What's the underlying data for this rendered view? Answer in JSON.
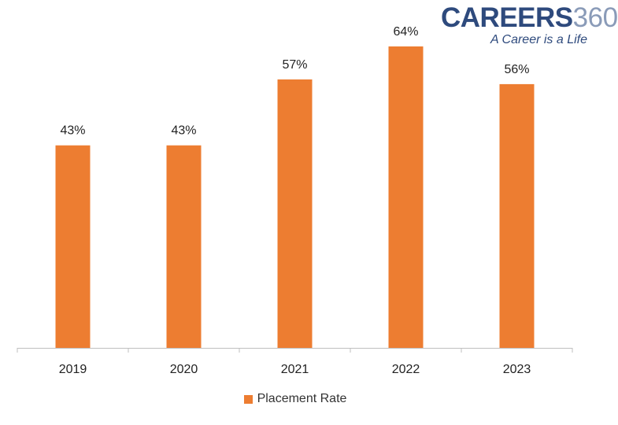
{
  "logo": {
    "word": "CAREERS",
    "number": "360",
    "tagline": "A Career is a Life"
  },
  "colors": {
    "bar": "#ED7D31",
    "axis": "#BFBFBF",
    "text": "#222222",
    "logo_primary": "#2E4A7D",
    "logo_secondary": "#8A9BB8"
  },
  "chart_data": {
    "type": "bar",
    "categories": [
      "2019",
      "2020",
      "2021",
      "2022",
      "2023"
    ],
    "series": [
      {
        "name": "Placement Rate",
        "values": [
          43,
          43,
          57,
          64,
          56
        ]
      }
    ],
    "data_labels": [
      "43%",
      "43%",
      "57%",
      "64%",
      "56%"
    ],
    "ylim": [
      0,
      64
    ],
    "legend_position": "bottom",
    "grid": false
  }
}
